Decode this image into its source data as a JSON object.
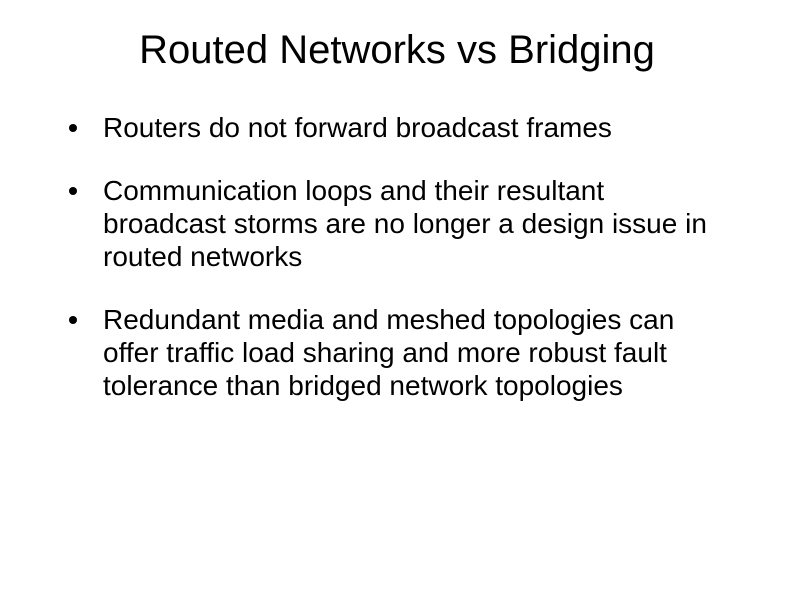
{
  "slide": {
    "title": "Routed Networks vs Bridging",
    "title_fontsize": 40,
    "body_fontsize": 28,
    "background_color": "#ffffff",
    "text_color": "#000000",
    "bullet_color": "#000000",
    "bullets": [
      "Routers do not forward broadcast frames",
      "Communication loops and their resultant broadcast storms are no longer a design issue in routed networks",
      "Redundant media and meshed topologies can offer traffic load sharing and more robust fault tolerance than bridged network topologies"
    ]
  }
}
